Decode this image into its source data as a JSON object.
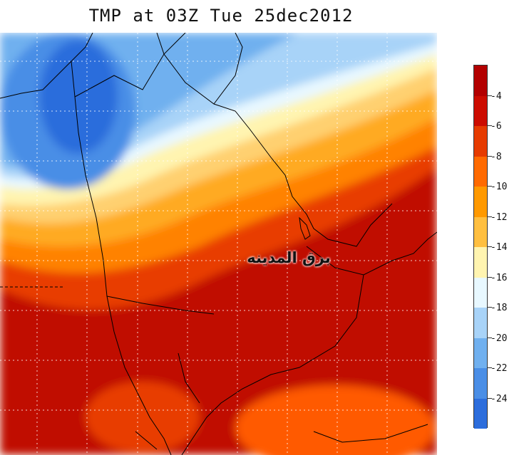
{
  "title": "TMP at 03Z Tue 25dec2012",
  "watermark": "برق المدينه",
  "legend": {
    "labels": [
      "-4",
      "-6",
      "-8",
      "-10",
      "-12",
      "-14",
      "-16",
      "-18",
      "-20",
      "-22",
      "-24"
    ],
    "colors_top_to_bottom": [
      "#b30000",
      "#cc0c00",
      "#e63b00",
      "#ff6a00",
      "#ff9900",
      "#ffbf40",
      "#fff4b0",
      "#e8f8ff",
      "#a8d3f8",
      "#70b0ef",
      "#4a8ee6",
      "#2c6ddc"
    ]
  },
  "colors": {
    "land_border": "#000000",
    "grid": "#ffffff"
  }
}
